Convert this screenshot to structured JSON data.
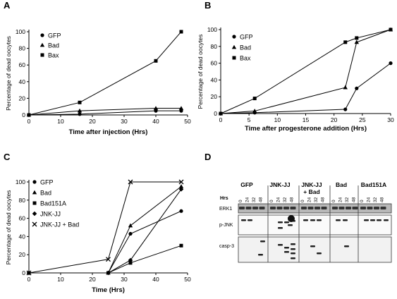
{
  "chart_data": [
    {
      "panel": "A",
      "type": "line",
      "xlabel": "Time after injection (Hrs)",
      "ylabel": "Percentage of dead oocytes",
      "xlim": [
        0,
        50
      ],
      "ylim": [
        0,
        100
      ],
      "xticks": [
        0,
        10,
        20,
        30,
        40,
        50
      ],
      "yticks": [
        0,
        20,
        40,
        60,
        80,
        100
      ],
      "legend_position": "top-left",
      "series": [
        {
          "name": "GFP",
          "marker": "circle",
          "x": [
            0,
            16,
            40,
            48
          ],
          "y": [
            0,
            1,
            5,
            5
          ]
        },
        {
          "name": "Bad",
          "marker": "triangle",
          "x": [
            0,
            16,
            40,
            48
          ],
          "y": [
            0,
            5,
            8,
            8
          ]
        },
        {
          "name": "Bax",
          "marker": "square",
          "x": [
            0,
            16,
            40,
            48
          ],
          "y": [
            0,
            15,
            65,
            100
          ]
        }
      ]
    },
    {
      "panel": "B",
      "type": "line",
      "xlabel": "Time after progesterone addition (Hrs)",
      "ylabel": "Percentage of dead oocytes",
      "xlim": [
        0,
        30
      ],
      "ylim": [
        0,
        100
      ],
      "xticks": [
        0,
        5,
        10,
        15,
        20,
        25,
        30
      ],
      "yticks": [
        0,
        20,
        40,
        60,
        80,
        100
      ],
      "legend_position": "top-left",
      "series": [
        {
          "name": "GFP",
          "marker": "circle",
          "x": [
            0,
            6,
            22,
            24,
            30
          ],
          "y": [
            0,
            1,
            5,
            30,
            60
          ]
        },
        {
          "name": "Bad",
          "marker": "triangle",
          "x": [
            0,
            6,
            22,
            24,
            30
          ],
          "y": [
            0,
            3,
            31,
            85,
            100
          ]
        },
        {
          "name": "Bax",
          "marker": "square",
          "x": [
            0,
            6,
            22,
            24,
            30
          ],
          "y": [
            0,
            18,
            85,
            90,
            100
          ]
        }
      ]
    },
    {
      "panel": "C",
      "type": "line",
      "xlabel": "Time (Hrs)",
      "ylabel": "Percentage of dead oocytes",
      "xlim": [
        0,
        50
      ],
      "ylim": [
        0,
        100
      ],
      "xticks": [
        0,
        10,
        20,
        30,
        40,
        50
      ],
      "yticks": [
        0,
        20,
        40,
        60,
        80,
        100
      ],
      "legend_position": "top-left",
      "series": [
        {
          "name": "GFP",
          "marker": "circle",
          "x": [
            0,
            25,
            32,
            48
          ],
          "y": [
            0,
            0,
            43,
            68
          ]
        },
        {
          "name": "Bad",
          "marker": "triangle",
          "x": [
            0,
            25,
            32,
            48
          ],
          "y": [
            0,
            0,
            52,
            95
          ]
        },
        {
          "name": "Bad151A",
          "marker": "square",
          "x": [
            0,
            25,
            32,
            48
          ],
          "y": [
            0,
            0,
            11,
            30
          ]
        },
        {
          "name": "JNK-JJ",
          "marker": "diamond",
          "x": [
            0,
            25,
            32,
            48
          ],
          "y": [
            0,
            0,
            14,
            92
          ]
        },
        {
          "name": "JNK-JJ + Bad",
          "marker": "x",
          "x": [
            0,
            25,
            32,
            48
          ],
          "y": [
            0,
            15,
            100,
            100
          ]
        }
      ]
    }
  ],
  "panel_letters": {
    "a": "A",
    "b": "B",
    "c": "C",
    "d": "D"
  },
  "blot": {
    "hrs_label": "Hrs",
    "groups": [
      {
        "label_line1": "GFP",
        "label_line2": "",
        "hours": [
          "0",
          "24",
          "32",
          "48"
        ]
      },
      {
        "label_line1": "JNK-JJ",
        "label_line2": "",
        "hours": [
          "0",
          "24",
          "32",
          "48"
        ]
      },
      {
        "label_line1": "JNK-JJ",
        "label_line2": "+ Bad",
        "hours": [
          "0",
          "24",
          "32",
          "48"
        ]
      },
      {
        "label_line1": "Bad",
        "label_line2": "",
        "hours": [
          "0",
          "24",
          "32",
          "48"
        ]
      },
      {
        "label_line1": "Bad151A",
        "label_line2": "",
        "hours": [
          "0",
          "24",
          "32",
          "48"
        ]
      }
    ],
    "rows": [
      "ERK1",
      "p-JNK",
      "casp-3"
    ]
  }
}
